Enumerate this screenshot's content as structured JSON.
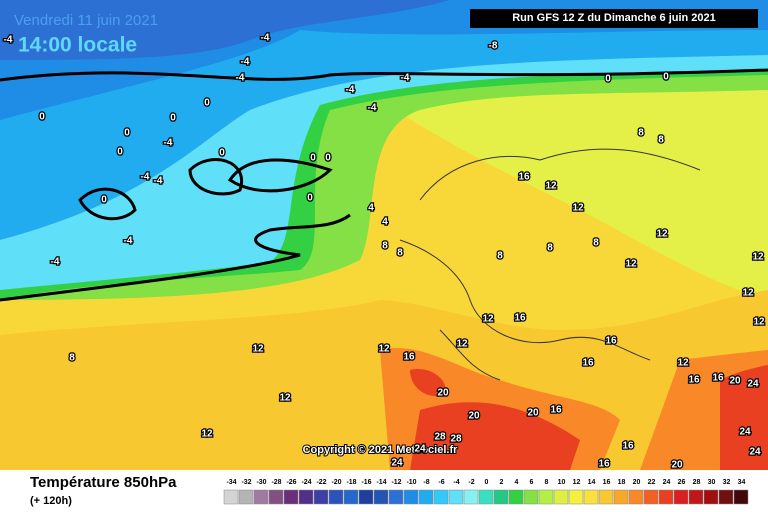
{
  "header": {
    "date": "Vendredi 11 juin 2021",
    "time": "14:00 locale",
    "run": "Run GFS 12 Z du Dimanche 6 juin 2021"
  },
  "copyright": "Copyright © 2021 Meteociel.fr",
  "footer": {
    "title": "Température 850hPa",
    "lead": "(+ 120h)"
  },
  "legend": {
    "ticks": [
      -34,
      -32,
      -30,
      -28,
      -26,
      -24,
      -22,
      -20,
      -18,
      -16,
      -14,
      -12,
      -10,
      -8,
      -6,
      -4,
      -2,
      0,
      2,
      4,
      6,
      8,
      10,
      12,
      14,
      16,
      18,
      20,
      22,
      24,
      26,
      28,
      30,
      32,
      34
    ],
    "colors": [
      "#d4d4d4",
      "#b4b4b4",
      "#a07aa0",
      "#845084",
      "#6a2f78",
      "#52308a",
      "#3d3fa6",
      "#2c52bc",
      "#2468cc",
      "#1e3f9e",
      "#2454b4",
      "#2c70d4",
      "#1f8ce6",
      "#22acf0",
      "#34c8f8",
      "#60e0f8",
      "#88f0f0",
      "#38e0c0",
      "#24c884",
      "#34d044",
      "#84e044",
      "#b4f044",
      "#dcf044",
      "#f4f040",
      "#f8e040",
      "#f8c830",
      "#f8a828",
      "#f88828",
      "#f06020",
      "#e84020",
      "#d82020",
      "#c01818",
      "#a01010",
      "#701010",
      "#400808"
    ]
  },
  "map_labels": [
    -4,
    -4,
    -4,
    -4,
    -4,
    -4,
    -4,
    -8,
    0,
    0,
    0,
    0,
    0,
    0,
    0,
    0,
    0,
    0,
    -4,
    -4,
    -4,
    0,
    -4,
    -4,
    0,
    4,
    4,
    8,
    8,
    8,
    12,
    12,
    12,
    12,
    16,
    12,
    12,
    16,
    16,
    12,
    12,
    8,
    8,
    12,
    12,
    12,
    8,
    8,
    8,
    16,
    16,
    12,
    16,
    16,
    20,
    24,
    20,
    20,
    16,
    20,
    16,
    16,
    20,
    24,
    24,
    24,
    28,
    28,
    24,
    12,
    12
  ]
}
